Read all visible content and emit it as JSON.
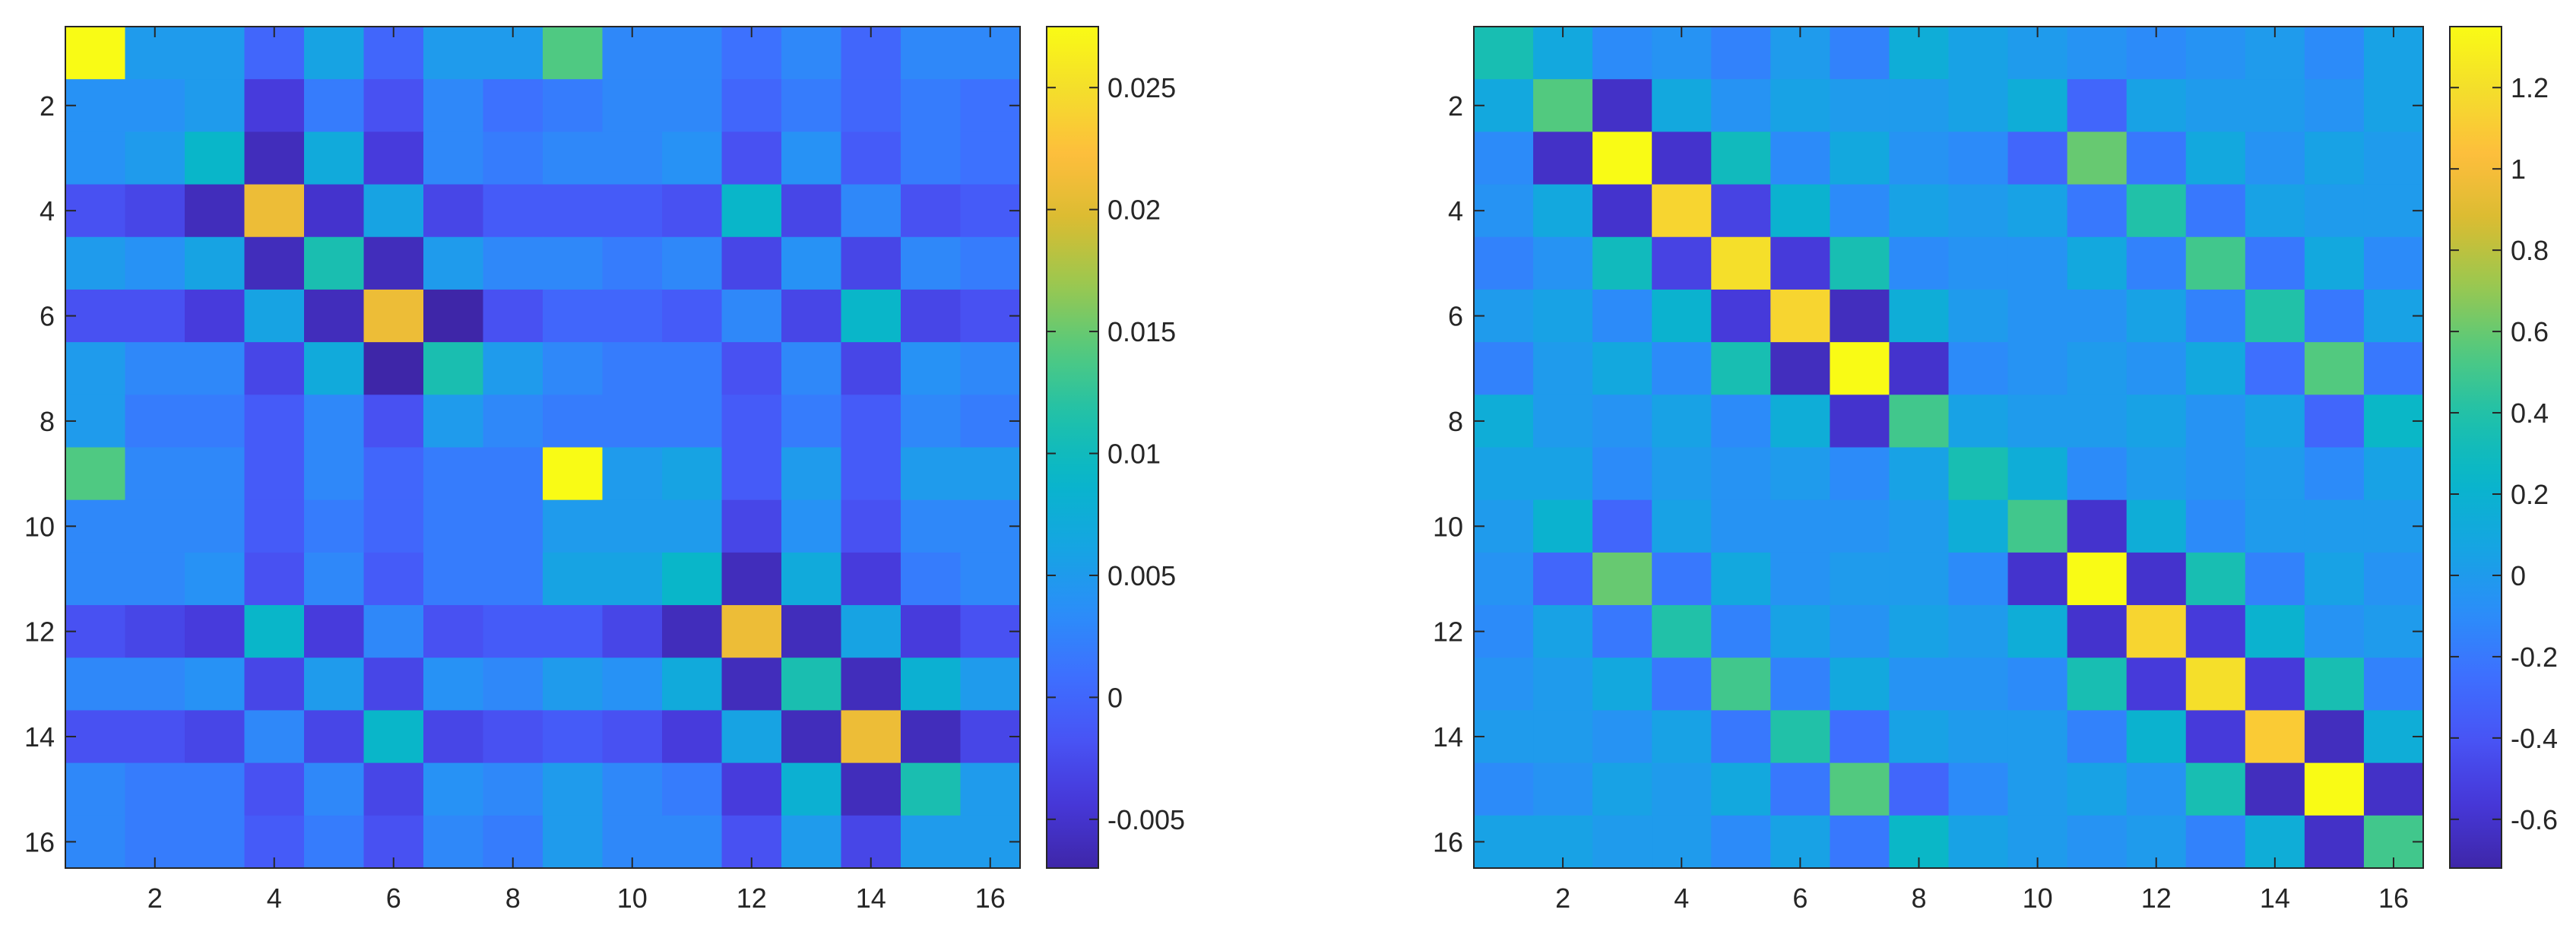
{
  "chart_data": [
    {
      "type": "heatmap",
      "title": "",
      "xlabel": "",
      "ylabel": "",
      "grid": false,
      "colormap": "parula",
      "x_ticks": [
        2,
        4,
        6,
        8,
        10,
        12,
        14,
        16
      ],
      "y_ticks": [
        2,
        4,
        6,
        8,
        10,
        12,
        14,
        16
      ],
      "x_tick_labels": [
        "2",
        "4",
        "6",
        "8",
        "10",
        "12",
        "14",
        "16"
      ],
      "y_tick_labels": [
        "2",
        "4",
        "6",
        "8",
        "10",
        "12",
        "14",
        "16"
      ],
      "colorbar": {
        "clim": [
          -0.007,
          0.0275
        ],
        "ticks": [
          -0.005,
          0,
          0.005,
          0.01,
          0.015,
          0.02,
          0.025
        ],
        "tick_labels": [
          "-0.005",
          "0",
          "0.005",
          "0.01",
          "0.015",
          "0.02",
          "0.025"
        ]
      },
      "matrix": [
        [
          0.0275,
          0.005,
          0.005,
          0.0,
          0.006,
          0.0,
          0.005,
          0.005,
          0.014,
          0.003,
          0.003,
          0.001,
          0.003,
          0.0,
          0.003,
          0.003
        ],
        [
          0.004,
          0.004,
          0.005,
          -0.004,
          0.002,
          -0.002,
          0.003,
          0.001,
          0.002,
          0.003,
          0.003,
          0.0,
          0.002,
          0.0,
          0.002,
          0.001
        ],
        [
          0.004,
          0.005,
          0.009,
          -0.006,
          0.007,
          -0.004,
          0.003,
          0.002,
          0.003,
          0.003,
          0.004,
          -0.002,
          0.004,
          -0.001,
          0.002,
          0.001
        ],
        [
          -0.002,
          -0.003,
          -0.006,
          0.021,
          -0.005,
          0.006,
          -0.003,
          -0.001,
          -0.001,
          -0.001,
          -0.002,
          0.009,
          -0.003,
          0.003,
          -0.002,
          -0.001
        ],
        [
          0.005,
          0.004,
          0.006,
          -0.006,
          0.011,
          -0.006,
          0.005,
          0.003,
          0.003,
          0.002,
          0.003,
          -0.003,
          0.004,
          -0.003,
          0.003,
          0.002
        ],
        [
          -0.002,
          -0.002,
          -0.004,
          0.006,
          -0.006,
          0.021,
          -0.007,
          -0.002,
          0.0,
          0.0,
          -0.001,
          0.003,
          -0.003,
          0.009,
          -0.003,
          -0.002
        ],
        [
          0.005,
          0.003,
          0.003,
          -0.003,
          0.007,
          -0.007,
          0.011,
          0.005,
          0.003,
          0.002,
          0.002,
          -0.002,
          0.003,
          -0.003,
          0.004,
          0.003
        ],
        [
          0.005,
          0.002,
          0.002,
          -0.001,
          0.003,
          -0.002,
          0.005,
          0.003,
          0.002,
          0.002,
          0.002,
          -0.001,
          0.002,
          -0.001,
          0.003,
          0.002
        ],
        [
          0.014,
          0.003,
          0.003,
          -0.001,
          0.003,
          0.0,
          0.002,
          0.002,
          0.0275,
          0.005,
          0.006,
          -0.001,
          0.005,
          -0.001,
          0.005,
          0.005
        ],
        [
          0.003,
          0.003,
          0.003,
          -0.001,
          0.002,
          0.0,
          0.002,
          0.002,
          0.005,
          0.005,
          0.005,
          -0.003,
          0.004,
          -0.002,
          0.003,
          0.003
        ],
        [
          0.003,
          0.003,
          0.004,
          -0.002,
          0.003,
          -0.001,
          0.002,
          0.002,
          0.006,
          0.006,
          0.009,
          -0.006,
          0.007,
          -0.004,
          0.002,
          0.003
        ],
        [
          -0.002,
          -0.003,
          -0.004,
          0.009,
          -0.004,
          0.003,
          -0.002,
          -0.001,
          -0.001,
          -0.003,
          -0.006,
          0.021,
          -0.006,
          0.006,
          -0.004,
          -0.002
        ],
        [
          0.003,
          0.003,
          0.004,
          -0.003,
          0.005,
          -0.003,
          0.004,
          0.003,
          0.005,
          0.004,
          0.007,
          -0.006,
          0.011,
          -0.006,
          0.008,
          0.005
        ],
        [
          -0.002,
          -0.002,
          -0.003,
          0.003,
          -0.003,
          0.009,
          -0.003,
          -0.002,
          -0.001,
          -0.002,
          -0.004,
          0.006,
          -0.006,
          0.021,
          -0.006,
          -0.003
        ],
        [
          0.003,
          0.002,
          0.002,
          -0.002,
          0.003,
          -0.003,
          0.004,
          0.003,
          0.005,
          0.003,
          0.002,
          -0.004,
          0.008,
          -0.006,
          0.011,
          0.005
        ],
        [
          0.003,
          0.002,
          0.002,
          -0.001,
          0.002,
          -0.002,
          0.003,
          0.002,
          0.005,
          0.003,
          0.003,
          -0.002,
          0.005,
          -0.003,
          0.005,
          0.005
        ]
      ]
    },
    {
      "type": "heatmap",
      "title": "",
      "xlabel": "",
      "ylabel": "",
      "grid": false,
      "colormap": "parula",
      "x_ticks": [
        2,
        4,
        6,
        8,
        10,
        12,
        14,
        16
      ],
      "y_ticks": [
        2,
        4,
        6,
        8,
        10,
        12,
        14,
        16
      ],
      "x_tick_labels": [
        "2",
        "4",
        "6",
        "8",
        "10",
        "12",
        "14",
        "16"
      ],
      "y_tick_labels": [
        "2",
        "4",
        "6",
        "8",
        "10",
        "12",
        "14",
        "16"
      ],
      "colorbar": {
        "clim": [
          -0.72,
          1.35
        ],
        "ticks": [
          -0.6,
          -0.4,
          -0.2,
          0,
          0.2,
          0.4,
          0.6,
          0.8,
          1,
          1.2
        ],
        "tick_labels": [
          "-0.6",
          "-0.4",
          "-0.2",
          "0",
          "0.2",
          "0.4",
          "0.6",
          "0.8",
          "1",
          "1.2"
        ]
      },
      "matrix": [
        [
          0.35,
          0.1,
          -0.1,
          -0.05,
          -0.15,
          0.0,
          -0.15,
          0.15,
          0.05,
          0.0,
          -0.05,
          -0.1,
          -0.05,
          0.0,
          -0.1,
          0.05
        ],
        [
          0.1,
          0.55,
          -0.62,
          0.1,
          -0.05,
          0.05,
          0.0,
          0.0,
          0.05,
          0.15,
          -0.3,
          0.05,
          0.0,
          0.0,
          -0.05,
          0.05
        ],
        [
          -0.1,
          -0.62,
          1.35,
          -0.6,
          0.3,
          -0.1,
          0.1,
          -0.05,
          -0.1,
          -0.3,
          0.6,
          -0.2,
          0.1,
          -0.05,
          0.05,
          0.0
        ],
        [
          -0.05,
          0.1,
          -0.6,
          1.15,
          -0.5,
          0.2,
          -0.1,
          0.05,
          0.0,
          0.05,
          -0.2,
          0.4,
          -0.2,
          0.05,
          0.0,
          0.0
        ],
        [
          -0.15,
          -0.05,
          0.3,
          -0.5,
          1.2,
          -0.55,
          0.35,
          -0.1,
          -0.05,
          -0.05,
          0.1,
          -0.15,
          0.5,
          -0.2,
          0.1,
          -0.1
        ],
        [
          0.0,
          0.05,
          -0.1,
          0.2,
          -0.55,
          1.15,
          -0.65,
          0.15,
          0.0,
          -0.05,
          -0.05,
          0.05,
          -0.15,
          0.4,
          -0.2,
          0.05
        ],
        [
          -0.15,
          0.0,
          0.1,
          -0.1,
          0.35,
          -0.65,
          1.35,
          -0.6,
          -0.1,
          -0.05,
          0.0,
          -0.05,
          0.1,
          -0.25,
          0.55,
          -0.2
        ],
        [
          0.15,
          0.0,
          -0.05,
          0.05,
          -0.1,
          0.15,
          -0.6,
          0.5,
          0.05,
          0.0,
          0.0,
          0.05,
          -0.05,
          0.05,
          -0.3,
          0.25
        ],
        [
          0.05,
          0.05,
          -0.1,
          0.0,
          -0.05,
          0.0,
          -0.1,
          0.05,
          0.35,
          0.15,
          -0.1,
          0.0,
          -0.05,
          0.0,
          -0.1,
          0.05
        ],
        [
          0.0,
          0.2,
          -0.3,
          0.05,
          -0.05,
          -0.05,
          -0.05,
          0.0,
          0.15,
          0.5,
          -0.6,
          0.15,
          -0.1,
          0.0,
          0.0,
          0.0
        ],
        [
          -0.05,
          -0.3,
          0.6,
          -0.2,
          0.1,
          -0.05,
          0.0,
          0.0,
          -0.1,
          -0.6,
          1.35,
          -0.6,
          0.35,
          -0.15,
          0.05,
          -0.05
        ],
        [
          -0.1,
          0.05,
          -0.2,
          0.4,
          -0.15,
          0.05,
          -0.05,
          0.05,
          0.0,
          0.15,
          -0.6,
          1.15,
          -0.55,
          0.2,
          -0.05,
          0.0
        ],
        [
          -0.05,
          0.0,
          0.1,
          -0.2,
          0.5,
          -0.15,
          0.1,
          -0.05,
          -0.05,
          -0.1,
          0.35,
          -0.55,
          1.2,
          -0.55,
          0.35,
          -0.15
        ],
        [
          0.0,
          0.0,
          -0.05,
          0.05,
          -0.2,
          0.4,
          -0.25,
          0.05,
          0.0,
          0.0,
          -0.15,
          0.2,
          -0.55,
          1.1,
          -0.65,
          0.15
        ],
        [
          -0.1,
          -0.05,
          0.05,
          0.0,
          0.1,
          -0.2,
          0.55,
          -0.3,
          -0.1,
          0.0,
          0.05,
          -0.05,
          0.35,
          -0.65,
          1.35,
          -0.62
        ],
        [
          0.05,
          0.05,
          0.0,
          0.0,
          -0.1,
          0.05,
          -0.2,
          0.25,
          0.05,
          0.0,
          -0.05,
          0.0,
          -0.15,
          0.15,
          -0.62,
          0.5
        ]
      ]
    }
  ]
}
